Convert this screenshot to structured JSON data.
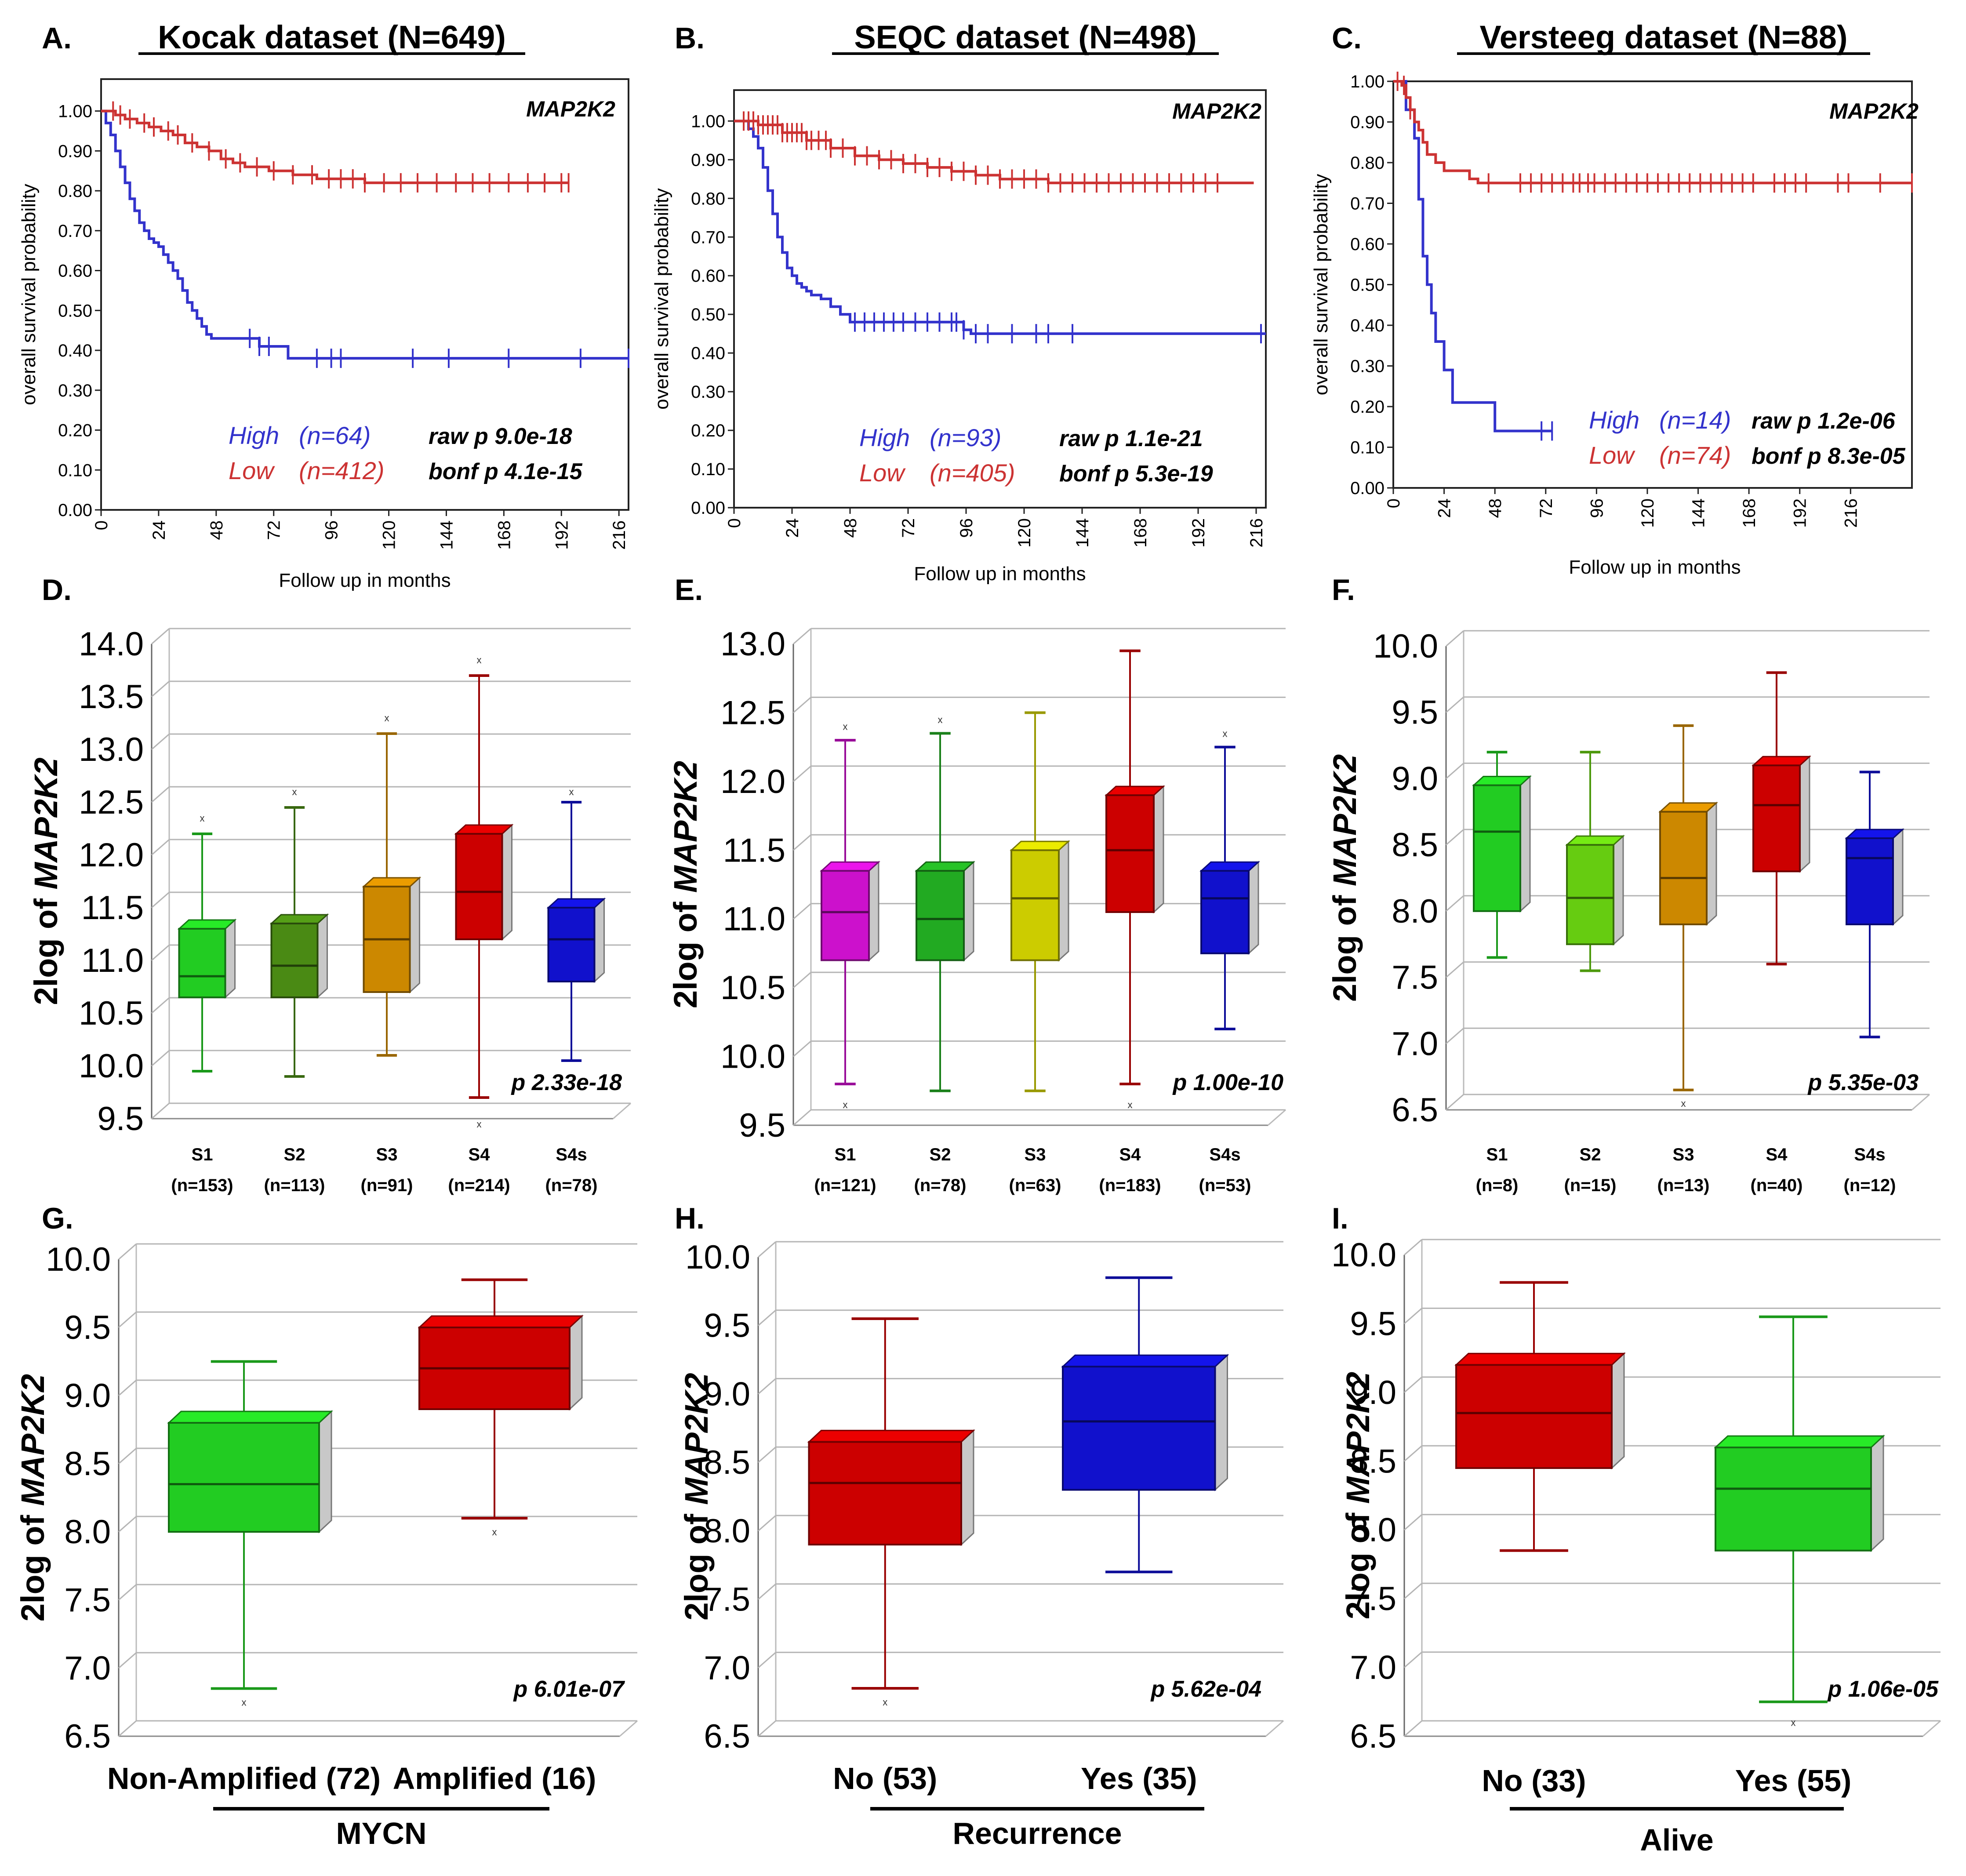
{
  "chart_data": [
    {
      "type": "line",
      "panel": "A.",
      "title": "Kocak dataset (N=649)",
      "gene": "MAP2K2",
      "xlabel": "Follow up in months",
      "ylabel": "overall survival probability",
      "xticks": [
        "0",
        "24",
        "48",
        "72",
        "96",
        "120",
        "144",
        "168",
        "192",
        "216"
      ],
      "yticks": [
        "0.00",
        "0.10",
        "0.20",
        "0.30",
        "0.40",
        "0.50",
        "0.60",
        "0.70",
        "0.80",
        "0.90",
        "1.00"
      ],
      "xlim": [
        0,
        220
      ],
      "ylim": [
        0,
        1.08
      ],
      "legend": [
        {
          "group": "High",
          "n": "(n=64)",
          "color": "#3333cc"
        },
        {
          "group": "Low",
          "n": "(n=412)",
          "color": "#cc3333"
        }
      ],
      "stats": {
        "raw": "raw p 9.0e-18",
        "bonf": "bonf p 4.1e-15"
      },
      "series": [
        {
          "name": "High",
          "color": "#3333cc",
          "x": [
            0,
            2,
            4,
            6,
            8,
            10,
            12,
            14,
            16,
            18,
            20,
            22,
            24,
            26,
            28,
            30,
            32,
            34,
            36,
            38,
            40,
            42,
            44,
            46,
            60,
            66,
            78,
            80,
            220
          ],
          "y": [
            1.0,
            0.97,
            0.94,
            0.9,
            0.86,
            0.82,
            0.78,
            0.75,
            0.72,
            0.7,
            0.68,
            0.67,
            0.66,
            0.64,
            0.62,
            0.6,
            0.58,
            0.55,
            0.52,
            0.5,
            0.48,
            0.46,
            0.44,
            0.43,
            0.43,
            0.41,
            0.38,
            0.38,
            0.38
          ],
          "censor": [
            62,
            66,
            70,
            90,
            96,
            100,
            130,
            145,
            170,
            200,
            220
          ]
        },
        {
          "name": "Low",
          "color": "#cc3333",
          "x": [
            0,
            6,
            10,
            15,
            20,
            25,
            30,
            35,
            40,
            45,
            50,
            55,
            60,
            70,
            80,
            90,
            100,
            110,
            130,
            150,
            195
          ],
          "y": [
            1.0,
            0.99,
            0.98,
            0.97,
            0.96,
            0.95,
            0.94,
            0.92,
            0.91,
            0.9,
            0.88,
            0.87,
            0.86,
            0.85,
            0.84,
            0.83,
            0.83,
            0.82,
            0.82,
            0.82,
            0.82
          ],
          "censor": [
            5,
            8,
            12,
            18,
            22,
            28,
            32,
            38,
            45,
            52,
            58,
            65,
            72,
            80,
            88,
            95,
            100,
            105,
            110,
            118,
            125,
            132,
            140,
            148,
            155,
            162,
            170,
            178,
            185,
            192,
            195
          ]
        }
      ]
    },
    {
      "type": "line",
      "panel": "B.",
      "title": "SEQC dataset (N=498)",
      "gene": "MAP2K2",
      "xlabel": "Follow up in months",
      "ylabel": "overall survival probability",
      "xticks": [
        "0",
        "24",
        "48",
        "72",
        "96",
        "120",
        "144",
        "168",
        "192",
        "216"
      ],
      "yticks": [
        "0.00",
        "0.10",
        "0.20",
        "0.30",
        "0.40",
        "0.50",
        "0.60",
        "0.70",
        "0.80",
        "0.90",
        "1.00"
      ],
      "xlim": [
        0,
        220
      ],
      "ylim": [
        0,
        1.08
      ],
      "legend": [
        {
          "group": "High",
          "n": "(n=93)",
          "color": "#3333cc"
        },
        {
          "group": "Low",
          "n": "(n=405)",
          "color": "#cc3333"
        }
      ],
      "stats": {
        "raw": "raw p 1.1e-21",
        "bonf": "bonf p 5.3e-19"
      },
      "series": [
        {
          "name": "High",
          "color": "#3333cc",
          "x": [
            0,
            6,
            8,
            10,
            12,
            14,
            16,
            18,
            20,
            22,
            24,
            26,
            28,
            30,
            32,
            36,
            40,
            44,
            48,
            56,
            60,
            95,
            98,
            220
          ],
          "y": [
            1.0,
            0.98,
            0.96,
            0.93,
            0.88,
            0.82,
            0.76,
            0.7,
            0.66,
            0.62,
            0.6,
            0.58,
            0.57,
            0.56,
            0.55,
            0.54,
            0.52,
            0.5,
            0.48,
            0.48,
            0.48,
            0.46,
            0.45,
            0.45
          ],
          "censor": [
            50,
            54,
            58,
            62,
            66,
            70,
            75,
            80,
            85,
            90,
            92,
            95,
            100,
            105,
            115,
            125,
            130,
            140,
            218
          ]
        },
        {
          "name": "Low",
          "color": "#cc3333",
          "x": [
            0,
            10,
            20,
            30,
            40,
            50,
            60,
            70,
            80,
            90,
            100,
            110,
            120,
            130,
            140,
            150,
            160,
            215
          ],
          "y": [
            1.0,
            0.99,
            0.97,
            0.95,
            0.93,
            0.91,
            0.9,
            0.89,
            0.88,
            0.87,
            0.86,
            0.85,
            0.85,
            0.84,
            0.84,
            0.84,
            0.84,
            0.84
          ],
          "censor": [
            4,
            6,
            8,
            10,
            12,
            14,
            16,
            18,
            20,
            22,
            24,
            26,
            28,
            30,
            32,
            35,
            38,
            40,
            45,
            50,
            55,
            60,
            65,
            70,
            75,
            80,
            85,
            90,
            95,
            100,
            105,
            110,
            115,
            120,
            125,
            130,
            135,
            140,
            145,
            150,
            155,
            160,
            165,
            170,
            175,
            180,
            185,
            190,
            195,
            200
          ]
        }
      ]
    },
    {
      "type": "line",
      "panel": "C.",
      "title": "Versteeg dataset (N=88)",
      "gene": "MAP2K2",
      "xlabel": "Follow up in months",
      "ylabel": "overall survival probability",
      "xticks": [
        "0",
        "24",
        "48",
        "72",
        "96",
        "120",
        "144",
        "168",
        "192",
        "216"
      ],
      "yticks": [
        "0.00",
        "0.10",
        "0.20",
        "0.30",
        "0.40",
        "0.50",
        "0.60",
        "0.70",
        "0.80",
        "0.90",
        "1.00"
      ],
      "xlim": [
        0,
        245
      ],
      "ylim": [
        0,
        1.0
      ],
      "legend": [
        {
          "group": "High",
          "n": "(n=14)",
          "color": "#3333cc"
        },
        {
          "group": "Low",
          "n": "(n=74)",
          "color": "#cc3333"
        }
      ],
      "stats": {
        "raw": "raw p 1.2e-06",
        "bonf": "bonf p 8.3e-05"
      },
      "series": [
        {
          "name": "High",
          "color": "#3333cc",
          "x": [
            0,
            6,
            10,
            12,
            14,
            16,
            18,
            20,
            24,
            28,
            32,
            48,
            75
          ],
          "y": [
            1.0,
            0.93,
            0.86,
            0.71,
            0.57,
            0.5,
            0.43,
            0.36,
            0.29,
            0.21,
            0.21,
            0.14,
            0.14
          ],
          "censor": [
            70,
            75
          ]
        },
        {
          "name": "Low",
          "color": "#cc3333",
          "x": [
            0,
            4,
            6,
            8,
            10,
            12,
            14,
            16,
            20,
            24,
            36,
            40,
            44,
            245
          ],
          "y": [
            1.0,
            0.99,
            0.96,
            0.93,
            0.9,
            0.88,
            0.85,
            0.82,
            0.8,
            0.78,
            0.76,
            0.75,
            0.75,
            0.75
          ],
          "censor": [
            2,
            5,
            8,
            45,
            60,
            65,
            70,
            75,
            80,
            85,
            88,
            92,
            95,
            100,
            105,
            110,
            115,
            120,
            125,
            130,
            135,
            140,
            145,
            150,
            155,
            160,
            165,
            170,
            180,
            185,
            190,
            195,
            210,
            215,
            230,
            245
          ]
        }
      ]
    },
    {
      "type": "box",
      "panel": "D.",
      "ylabel_prefix": "2log of ",
      "ylabel_gene": "MAP2K2",
      "ylim": [
        9.5,
        14.0
      ],
      "yticks": [
        "9.5",
        "10.0",
        "10.5",
        "11.0",
        "11.5",
        "12.0",
        "12.5",
        "13.0",
        "13.5",
        "14.0"
      ],
      "pvalue": "p 2.33e-18",
      "boxes": [
        {
          "label": "S1",
          "n": "(n=153)",
          "color": "#22cc22",
          "q1": 10.65,
          "median": 10.85,
          "q3": 11.3,
          "lo": 9.95,
          "hi": 12.2,
          "outlier": [
            12.35
          ]
        },
        {
          "label": "S2",
          "n": "(n=113)",
          "color": "#4a8a14",
          "q1": 10.65,
          "median": 10.95,
          "q3": 11.35,
          "lo": 9.9,
          "hi": 12.45,
          "outlier": [
            12.6
          ]
        },
        {
          "label": "S3",
          "n": "(n=91)",
          "color": "#cc8800",
          "q1": 10.7,
          "median": 11.2,
          "q3": 11.7,
          "lo": 10.1,
          "hi": 13.15,
          "outlier": [
            13.3
          ]
        },
        {
          "label": "S4",
          "n": "(n=214)",
          "color": "#cc0000",
          "q1": 11.2,
          "median": 11.65,
          "q3": 12.2,
          "lo": 9.7,
          "hi": 13.7,
          "outlier": [
            13.85,
            9.45
          ]
        },
        {
          "label": "S4s",
          "n": "(n=78)",
          "color": "#1111cc",
          "q1": 10.8,
          "median": 11.2,
          "q3": 11.5,
          "lo": 10.05,
          "hi": 12.5,
          "outlier": [
            12.6
          ]
        }
      ]
    },
    {
      "type": "box",
      "panel": "E.",
      "ylabel_prefix": "2log of ",
      "ylabel_gene": "MAP2K2",
      "ylim": [
        9.5,
        13.0
      ],
      "yticks": [
        "9.5",
        "10.0",
        "10.5",
        "11.0",
        "11.5",
        "12.0",
        "12.5",
        "13.0"
      ],
      "pvalue": "p 1.00e-10",
      "boxes": [
        {
          "label": "S1",
          "n": "(n=121)",
          "color": "#cc11cc",
          "q1": 10.7,
          "median": 11.05,
          "q3": 11.35,
          "lo": 9.8,
          "hi": 12.3,
          "outlier": [
            12.4,
            9.65
          ]
        },
        {
          "label": "S2",
          "n": "(n=78)",
          "color": "#22aa22",
          "q1": 10.7,
          "median": 11.0,
          "q3": 11.35,
          "lo": 9.75,
          "hi": 12.35,
          "outlier": [
            12.45
          ]
        },
        {
          "label": "S3",
          "n": "(n=63)",
          "color": "#cccc00",
          "q1": 10.7,
          "median": 11.15,
          "q3": 11.5,
          "lo": 9.75,
          "hi": 12.5,
          "outlier": []
        },
        {
          "label": "S4",
          "n": "(n=183)",
          "color": "#cc0000",
          "q1": 11.05,
          "median": 11.5,
          "q3": 11.9,
          "lo": 9.8,
          "hi": 12.95,
          "outlier": [
            9.65
          ]
        },
        {
          "label": "S4s",
          "n": "(n=53)",
          "color": "#1111cc",
          "q1": 10.75,
          "median": 11.15,
          "q3": 11.35,
          "lo": 10.2,
          "hi": 12.25,
          "outlier": [
            12.35
          ]
        }
      ]
    },
    {
      "type": "box",
      "panel": "F.",
      "ylabel_prefix": "2log of ",
      "ylabel_gene": "MAP2K2",
      "ylim": [
        6.5,
        10.0
      ],
      "yticks": [
        "6.5",
        "7.0",
        "7.5",
        "8.0",
        "8.5",
        "9.0",
        "9.5",
        "10.0"
      ],
      "pvalue": "p 5.35e-03",
      "boxes": [
        {
          "label": "S1",
          "n": "(n=8)",
          "color": "#22cc22",
          "q1": 8.0,
          "median": 8.6,
          "q3": 8.95,
          "lo": 7.65,
          "hi": 9.2,
          "outlier": []
        },
        {
          "label": "S2",
          "n": "(n=15)",
          "color": "#66cc11",
          "q1": 7.75,
          "median": 8.1,
          "q3": 8.5,
          "lo": 7.55,
          "hi": 9.2,
          "outlier": []
        },
        {
          "label": "S3",
          "n": "(n=13)",
          "color": "#cc8800",
          "q1": 7.9,
          "median": 8.25,
          "q3": 8.75,
          "lo": 6.65,
          "hi": 9.4,
          "outlier": [
            6.55
          ]
        },
        {
          "label": "S4",
          "n": "(n=40)",
          "color": "#cc0000",
          "q1": 8.3,
          "median": 8.8,
          "q3": 9.1,
          "lo": 7.6,
          "hi": 9.8,
          "outlier": []
        },
        {
          "label": "S4s",
          "n": "(n=12)",
          "color": "#1111cc",
          "q1": 7.9,
          "median": 8.4,
          "q3": 8.55,
          "lo": 7.05,
          "hi": 9.05,
          "outlier": []
        }
      ]
    },
    {
      "type": "box",
      "panel": "G.",
      "ylabel_prefix": "2log of ",
      "ylabel_gene": "MAP2K2",
      "ylim": [
        6.5,
        10.0
      ],
      "yticks": [
        "6.5",
        "7.0",
        "7.5",
        "8.0",
        "8.5",
        "9.0",
        "9.5",
        "10.0"
      ],
      "pvalue": "p 6.01e-07",
      "group_label": "MYCN",
      "boxes": [
        {
          "label": "Non-Amplified (72)",
          "color": "#22cc22",
          "q1": 8.0,
          "median": 8.35,
          "q3": 8.8,
          "lo": 6.85,
          "hi": 9.25,
          "outlier": [
            6.75
          ]
        },
        {
          "label": "Amplified (16)",
          "color": "#cc0000",
          "q1": 8.9,
          "median": 9.2,
          "q3": 9.5,
          "lo": 8.1,
          "hi": 9.85,
          "outlier": [
            8.0
          ]
        }
      ]
    },
    {
      "type": "box",
      "panel": "H.",
      "ylabel_prefix": "2log of ",
      "ylabel_gene": "MAP2K2",
      "ylim": [
        6.5,
        10.0
      ],
      "yticks": [
        "6.5",
        "7.0",
        "7.5",
        "8.0",
        "8.5",
        "9.0",
        "9.5",
        "10.0"
      ],
      "pvalue": "p 5.62e-04",
      "group_label": "Recurrence",
      "boxes": [
        {
          "label": "No (53)",
          "color": "#cc0000",
          "q1": 7.9,
          "median": 8.35,
          "q3": 8.65,
          "lo": 6.85,
          "hi": 9.55,
          "outlier": [
            6.75
          ]
        },
        {
          "label": "Yes (35)",
          "color": "#1111cc",
          "q1": 8.3,
          "median": 8.8,
          "q3": 9.2,
          "lo": 7.7,
          "hi": 9.85,
          "outlier": []
        }
      ]
    },
    {
      "type": "box",
      "panel": "I.",
      "ylabel_prefix": "2log of ",
      "ylabel_gene": "MAP2K2",
      "ylim": [
        6.5,
        10.0
      ],
      "yticks": [
        "6.5",
        "7.0",
        "7.5",
        "8.0",
        "8.5",
        "9.0",
        "9.5",
        "10.0"
      ],
      "pvalue": "p 1.06e-05",
      "group_label": "Alive",
      "boxes": [
        {
          "label": "No (33)",
          "color": "#cc0000",
          "q1": 8.45,
          "median": 8.85,
          "q3": 9.2,
          "lo": 7.85,
          "hi": 9.8,
          "outlier": []
        },
        {
          "label": "Yes (55)",
          "color": "#22cc22",
          "q1": 7.85,
          "median": 8.3,
          "q3": 8.6,
          "lo": 6.75,
          "hi": 9.55,
          "outlier": [
            6.6
          ]
        }
      ]
    }
  ]
}
